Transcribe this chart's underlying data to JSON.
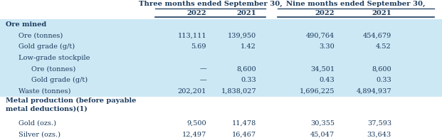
{
  "header1": "Three months ended September 30,",
  "header2": "Nine months ended September 30,",
  "col_headers": [
    "2022",
    "2021",
    "2022",
    "2021"
  ],
  "bg_light": "#cce8f5",
  "bg_white": "#ffffff",
  "text_color": "#1a3a5c",
  "bold_color": "#1a3a5c",
  "line_color": "#1a3a5c",
  "font_size": 7.0,
  "header_font_size": 7.2,
  "rows": [
    {
      "label": "Ore mined",
      "indent": 0,
      "bold": true,
      "vals": [
        "",
        "",
        "",
        ""
      ],
      "section": true,
      "bg": "light"
    },
    {
      "label": "Ore (tonnes)",
      "indent": 1,
      "bold": false,
      "vals": [
        "113,111",
        "139,950",
        "490,764",
        "454,679"
      ],
      "bg": "light"
    },
    {
      "label": "Gold grade (g/t)",
      "indent": 1,
      "bold": false,
      "vals": [
        "5.69",
        "1.42",
        "3.30",
        "4.52"
      ],
      "bg": "light"
    },
    {
      "label": "Low-grade stockpile",
      "indent": 1,
      "bold": false,
      "vals": [
        "",
        "",
        "",
        ""
      ],
      "section": false,
      "bg": "light"
    },
    {
      "label": "Ore (tonnes)",
      "indent": 2,
      "bold": false,
      "vals": [
        "—",
        "8,600",
        "34,501",
        "8,600"
      ],
      "bg": "light"
    },
    {
      "label": "Gold grade (g/t)",
      "indent": 2,
      "bold": false,
      "vals": [
        "—",
        "0.33",
        "0.43",
        "0.33"
      ],
      "bg": "light"
    },
    {
      "label": "Waste (tonnes)",
      "indent": 1,
      "bold": false,
      "vals": [
        "202,201",
        "1,838,027",
        "1,696,225",
        "4,894,937"
      ],
      "bg": "light"
    },
    {
      "label": "Metal production (before payable\nmetal deductions)(1)",
      "indent": 0,
      "bold": true,
      "vals": [
        "",
        "",
        "",
        ""
      ],
      "section": true,
      "bg": "white",
      "tall": true
    },
    {
      "label": "Gold (ozs.)",
      "indent": 1,
      "bold": false,
      "vals": [
        "9,500",
        "11,478",
        "30,355",
        "37,593"
      ],
      "bg": "white"
    },
    {
      "label": "Silver (ozs.)",
      "indent": 1,
      "bold": false,
      "vals": [
        "12,497",
        "16,467",
        "45,047",
        "33,643"
      ],
      "bg": "white"
    }
  ]
}
